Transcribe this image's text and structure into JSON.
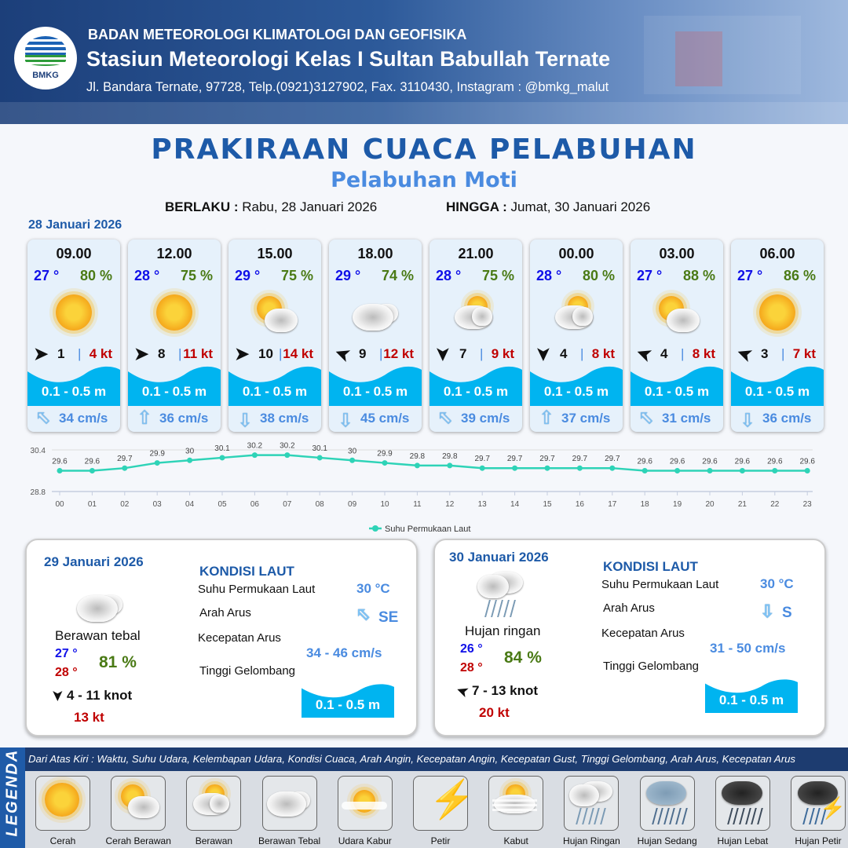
{
  "header": {
    "org": "BADAN METEOROLOGI KLIMATOLOGI DAN GEOFISIKA",
    "station": "Stasiun Meteorologi Kelas I Sultan Babullah Ternate",
    "address": "Jl. Bandara Ternate, 97728, Telp.(0921)3127902, Fax. 3110430, Instagram : @bmkg_malut",
    "logo_text": "BMKG"
  },
  "title": "PRAKIRAAN CUACA PELABUHAN",
  "subtitle": "Pelabuhan Moti",
  "validity": {
    "from_label": "BERLAKU :",
    "from": "Rabu, 28 Januari 2026",
    "to_label": "HINGGA :",
    "to": "Jumat, 30 Januari 2026"
  },
  "day1": {
    "date": "28 Januari 2026",
    "cards": [
      {
        "time": "09.00",
        "temp": "27 °",
        "hum": "80 %",
        "icon": "cerah",
        "wind_dir_deg": 0,
        "wind": "1",
        "gust": "4 kt",
        "wave": "0.1 - 0.5 m",
        "current_dir_deg": -45,
        "current": "34 cm/s"
      },
      {
        "time": "12.00",
        "temp": "28 °",
        "hum": "75 %",
        "icon": "cerah",
        "wind_dir_deg": 0,
        "wind": "8",
        "gust": "11 kt",
        "wave": "0.1 - 0.5 m",
        "current_dir_deg": 0,
        "current": "36 cm/s"
      },
      {
        "time": "15.00",
        "temp": "29 °",
        "hum": "75 %",
        "icon": "cerah-berawan",
        "wind_dir_deg": 0,
        "wind": "10",
        "gust": "14 kt",
        "wave": "0.1 - 0.5 m",
        "current_dir_deg": 180,
        "current": "38 cm/s"
      },
      {
        "time": "18.00",
        "temp": "29 °",
        "hum": "74 %",
        "icon": "berawan-tebal",
        "wind_dir_deg": 200,
        "wind": "9",
        "gust": "12 kt",
        "wave": "0.1 - 0.5 m",
        "current_dir_deg": 180,
        "current": "45 cm/s"
      },
      {
        "time": "21.00",
        "temp": "28 °",
        "hum": "75 %",
        "icon": "berawan",
        "wind_dir_deg": 90,
        "wind": "7",
        "gust": "9 kt",
        "wave": "0.1 - 0.5 m",
        "current_dir_deg": -45,
        "current": "39 cm/s"
      },
      {
        "time": "00.00",
        "temp": "28 °",
        "hum": "80 %",
        "icon": "berawan",
        "wind_dir_deg": 90,
        "wind": "4",
        "gust": "8 kt",
        "wave": "0.1 - 0.5 m",
        "current_dir_deg": 0,
        "current": "37 cm/s"
      },
      {
        "time": "03.00",
        "temp": "27 °",
        "hum": "88 %",
        "icon": "cerah-berawan",
        "wind_dir_deg": 200,
        "wind": "4",
        "gust": "8 kt",
        "wave": "0.1 - 0.5 m",
        "current_dir_deg": -45,
        "current": "31 cm/s"
      },
      {
        "time": "06.00",
        "temp": "27 °",
        "hum": "86 %",
        "icon": "cerah",
        "wind_dir_deg": 200,
        "wind": "3",
        "gust": "7 kt",
        "wave": "0.1 - 0.5 m",
        "current_dir_deg": 180,
        "current": "36 cm/s"
      }
    ]
  },
  "chart_data": {
    "type": "line",
    "categories": [
      "00",
      "01",
      "02",
      "03",
      "04",
      "05",
      "06",
      "07",
      "08",
      "09",
      "10",
      "11",
      "12",
      "13",
      "14",
      "15",
      "16",
      "17",
      "18",
      "19",
      "20",
      "21",
      "22",
      "23"
    ],
    "series": [
      {
        "name": "Suhu Permukaan Laut",
        "values": [
          29.6,
          29.6,
          29.7,
          29.9,
          30.0,
          30.1,
          30.2,
          30.2,
          30.1,
          30.0,
          29.9,
          29.8,
          29.8,
          29.7,
          29.7,
          29.7,
          29.7,
          29.7,
          29.6,
          29.6,
          29.6,
          29.6,
          29.6,
          29.6
        ]
      }
    ],
    "yticks": [
      "30.4",
      "28.8"
    ],
    "ylim": [
      28.8,
      30.4
    ],
    "legend": "bottom",
    "color": "#2ed3b7"
  },
  "day2": {
    "date": "29 Januari 2026",
    "condition": "Berawan tebal",
    "icon": "berawan-tebal",
    "tmin": "27 °",
    "tmax": "28 °",
    "hum": "81 %",
    "wind_dir_deg": 90,
    "wind": "4  - 11 knot",
    "gust": "13 kt",
    "sea": {
      "title": "KONDISI LAUT",
      "sst_label": "Suhu Permukaan Laut",
      "sst": "30 °C",
      "cur_dir_label": "Arah Arus",
      "cur_dir": "SE",
      "cur_dir_deg": -45,
      "cur_spd_label": "Kecepatan Arus",
      "cur_spd": "34  - 46 cm/s",
      "wave_label": "Tinggi Gelombang",
      "wave": "0.1 - 0.5 m"
    }
  },
  "day3": {
    "date": "30 Januari 2026",
    "condition": "Hujan ringan",
    "icon": "hujan-ringan",
    "tmin": "26 °",
    "tmax": "28 °",
    "hum": "84 %",
    "wind_dir_deg": 200,
    "wind": "7  - 13 knot",
    "gust": "20 kt",
    "sea": {
      "title": "KONDISI LAUT",
      "sst_label": "Suhu Permukaan Laut",
      "sst": "30 °C",
      "cur_dir_label": "Arah Arus",
      "cur_dir": "S",
      "cur_dir_deg": 180,
      "cur_spd_label": "Kecepatan Arus",
      "cur_spd": "31  - 50 cm/s",
      "wave_label": "Tinggi Gelombang",
      "wave": "0.1 - 0.5 m"
    }
  },
  "legend": {
    "side_label": "LEGENDA",
    "description": "Dari Atas Kiri : Waktu, Suhu Udara, Kelembapan Udara, Kondisi Cuaca, Arah Angin, Kecepatan Angin, Kecepatan Gust, Tinggi Gelombang, Arah Arus, Kecepatan Arus",
    "items": [
      "Cerah",
      "Cerah Berawan",
      "Berawan",
      "Berawan Tebal",
      "Udara Kabur",
      "Petir",
      "Kabut",
      "Hujan Ringan",
      "Hujan Sedang",
      "Hujan Lebat",
      "Hujan Petir"
    ]
  },
  "colors": {
    "title": "#1d5aa8",
    "temp": "#1010e8",
    "humidity": "#4a7a15",
    "gust": "#c00000",
    "wave": "#00b4f0",
    "sst_line": "#2ed3b7"
  }
}
